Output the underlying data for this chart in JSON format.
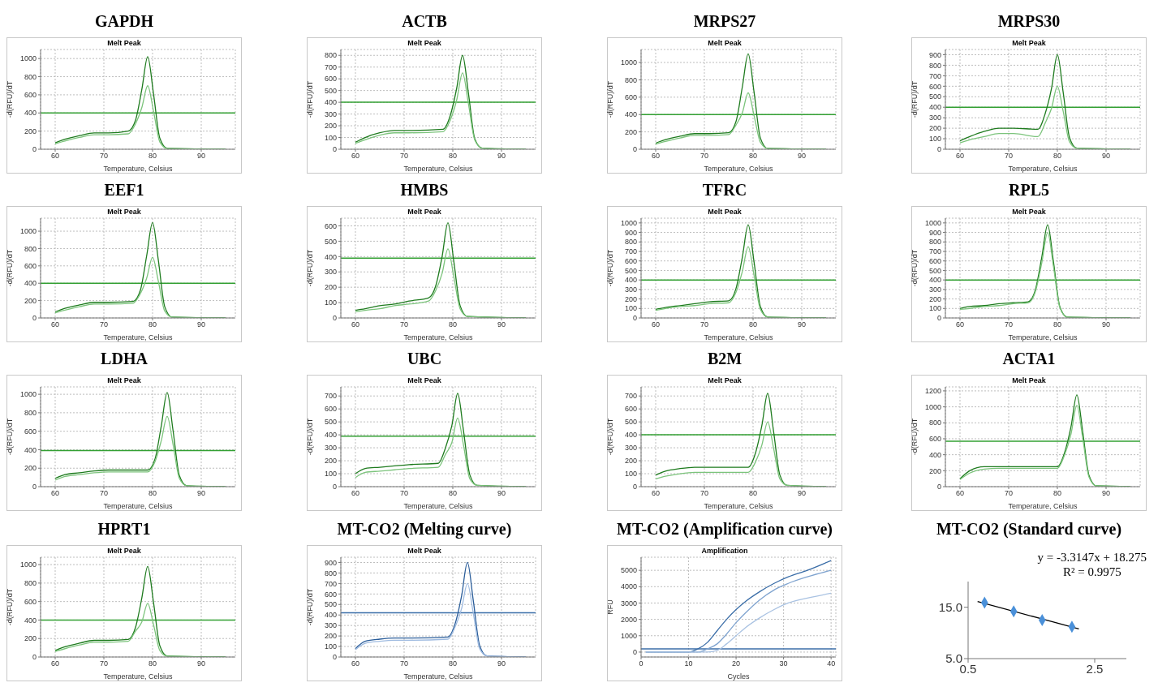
{
  "chart_data": [
    {
      "type": "line",
      "title": "GAPDH",
      "subtitle": "Melt Peak",
      "xlabel": "Temperature, Celsius",
      "ylabel": "-d(RFU)/dT",
      "xlim": [
        57,
        97
      ],
      "xticks": [
        60,
        70,
        80,
        90
      ],
      "ylim": [
        0,
        1100
      ],
      "yticks": [
        0,
        200,
        400,
        600,
        800,
        1000
      ],
      "grid": true,
      "x": [
        60,
        62,
        65,
        68,
        71,
        75,
        76.5,
        77.8,
        79,
        80.2,
        81.5,
        83,
        95
      ],
      "series": [
        {
          "color": "#1e7b1e",
          "values": [
            70,
            110,
            150,
            180,
            180,
            200,
            320,
            660,
            1020,
            610,
            120,
            10,
            0
          ]
        },
        {
          "color": "#7cc47c",
          "values": [
            60,
            90,
            130,
            160,
            160,
            170,
            280,
            460,
            700,
            420,
            80,
            10,
            0
          ]
        }
      ],
      "ref_lines": [
        {
          "axis": "y",
          "value": 400,
          "color": "#33a033"
        }
      ]
    },
    {
      "type": "line",
      "title": "ACTB",
      "subtitle": "Melt Peak",
      "xlabel": "Temperature, Celsius",
      "ylabel": "-d(RFU)/dT",
      "xlim": [
        57,
        97
      ],
      "xticks": [
        60,
        70,
        80,
        90
      ],
      "ylim": [
        0,
        850
      ],
      "yticks": [
        0,
        100,
        200,
        300,
        400,
        500,
        600,
        700,
        800
      ],
      "grid": true,
      "x": [
        60,
        62,
        65,
        68,
        71,
        78,
        79.5,
        80.8,
        82,
        83.2,
        84.5,
        86,
        95
      ],
      "series": [
        {
          "color": "#1e7b1e",
          "values": [
            60,
            100,
            140,
            160,
            160,
            170,
            290,
            520,
            800,
            480,
            90,
            10,
            0
          ]
        },
        {
          "color": "#7cc47c",
          "values": [
            50,
            80,
            120,
            140,
            140,
            150,
            250,
            420,
            650,
            390,
            80,
            10,
            0
          ]
        }
      ],
      "ref_lines": [
        {
          "axis": "y",
          "value": 400,
          "color": "#33a033"
        }
      ]
    },
    {
      "type": "line",
      "title": "MRPS27",
      "subtitle": "Melt Peak",
      "xlabel": "Temperature, Celsius",
      "ylabel": "-d(RFU)/dT",
      "xlim": [
        57,
        97
      ],
      "xticks": [
        60,
        70,
        80,
        90
      ],
      "ylim": [
        0,
        1150
      ],
      "yticks": [
        0,
        200,
        400,
        600,
        800,
        1000
      ],
      "grid": true,
      "x": [
        60,
        62,
        65,
        68,
        71,
        75,
        76.5,
        77.8,
        79,
        80.2,
        81.5,
        83,
        95
      ],
      "series": [
        {
          "color": "#1e7b1e",
          "values": [
            70,
            110,
            150,
            180,
            180,
            190,
            320,
            720,
            1100,
            660,
            130,
            10,
            0
          ]
        },
        {
          "color": "#7cc47c",
          "values": [
            60,
            90,
            130,
            160,
            160,
            170,
            280,
            420,
            650,
            390,
            80,
            10,
            0
          ]
        }
      ],
      "ref_lines": [
        {
          "axis": "y",
          "value": 400,
          "color": "#33a033"
        }
      ]
    },
    {
      "type": "line",
      "title": "MRPS30",
      "subtitle": "Melt Peak",
      "xlabel": "Temperature, Celsius",
      "ylabel": "-d(RFU)/dT",
      "xlim": [
        57,
        97
      ],
      "xticks": [
        60,
        70,
        80,
        90
      ],
      "ylim": [
        0,
        950
      ],
      "yticks": [
        0,
        100,
        200,
        300,
        400,
        500,
        600,
        700,
        800,
        900
      ],
      "grid": true,
      "x": [
        60,
        62,
        65,
        68,
        71,
        76,
        77.5,
        78.8,
        80,
        81.2,
        82.5,
        84,
        95
      ],
      "series": [
        {
          "color": "#1e7b1e",
          "values": [
            80,
            120,
            170,
            200,
            200,
            190,
            340,
            580,
            900,
            540,
            110,
            10,
            0
          ]
        },
        {
          "color": "#7cc47c",
          "values": [
            60,
            90,
            120,
            150,
            150,
            120,
            250,
            390,
            600,
            360,
            70,
            10,
            0
          ]
        }
      ],
      "ref_lines": [
        {
          "axis": "y",
          "value": 400,
          "color": "#33a033"
        }
      ]
    },
    {
      "type": "line",
      "title": "EEF1",
      "subtitle": "Melt Peak",
      "xlabel": "Temperature, Celsius",
      "ylabel": "-d(RFU)/dT",
      "xlim": [
        57,
        97
      ],
      "xticks": [
        60,
        70,
        80,
        90
      ],
      "ylim": [
        0,
        1150
      ],
      "yticks": [
        0,
        200,
        400,
        600,
        800,
        1000
      ],
      "grid": true,
      "x": [
        60,
        62,
        65,
        68,
        71,
        76,
        77.5,
        78.8,
        80,
        81.2,
        82.5,
        84,
        95
      ],
      "series": [
        {
          "color": "#1e7b1e",
          "values": [
            70,
            110,
            150,
            180,
            180,
            190,
            320,
            720,
            1100,
            660,
            130,
            10,
            0
          ]
        },
        {
          "color": "#7cc47c",
          "values": [
            60,
            90,
            130,
            160,
            160,
            170,
            280,
            460,
            700,
            420,
            80,
            10,
            0
          ]
        }
      ],
      "ref_lines": [
        {
          "axis": "y",
          "value": 400,
          "color": "#33a033"
        }
      ]
    },
    {
      "type": "line",
      "title": "HMBS",
      "subtitle": "Melt Peak",
      "xlabel": "Temperature, Celsius",
      "ylabel": "-d(RFU)/dT",
      "xlim": [
        57,
        97
      ],
      "xticks": [
        60,
        70,
        80,
        90
      ],
      "ylim": [
        0,
        650
      ],
      "yticks": [
        0,
        100,
        200,
        300,
        400,
        500,
        600
      ],
      "grid": true,
      "x": [
        60,
        62,
        65,
        68,
        71,
        75,
        76.5,
        77.8,
        79,
        80.2,
        81.5,
        83,
        95
      ],
      "series": [
        {
          "color": "#1e7b1e",
          "values": [
            50,
            60,
            80,
            90,
            110,
            130,
            210,
            400,
            620,
            370,
            80,
            10,
            0
          ]
        },
        {
          "color": "#7cc47c",
          "values": [
            40,
            50,
            60,
            80,
            90,
            110,
            180,
            290,
            450,
            270,
            60,
            10,
            0
          ]
        }
      ],
      "ref_lines": [
        {
          "axis": "y",
          "value": 390,
          "color": "#33a033"
        }
      ]
    },
    {
      "type": "line",
      "title": "TFRC",
      "subtitle": "Melt Peak",
      "xlabel": "Temperature, Celsius",
      "ylabel": "-d(RFU)/dT",
      "xlim": [
        57,
        97
      ],
      "xticks": [
        60,
        70,
        80,
        90
      ],
      "ylim": [
        0,
        1050
      ],
      "yticks": [
        0,
        100,
        200,
        300,
        400,
        500,
        600,
        700,
        800,
        900,
        1000
      ],
      "grid": true,
      "x": [
        60,
        62,
        65,
        68,
        71,
        75,
        76.5,
        77.8,
        79,
        80.2,
        81.5,
        83,
        95
      ],
      "series": [
        {
          "color": "#1e7b1e",
          "values": [
            90,
            110,
            130,
            150,
            170,
            180,
            310,
            640,
            980,
            590,
            120,
            10,
            0
          ]
        },
        {
          "color": "#7cc47c",
          "values": [
            80,
            100,
            120,
            130,
            150,
            160,
            270,
            490,
            750,
            450,
            90,
            10,
            0
          ]
        }
      ],
      "ref_lines": [
        {
          "axis": "y",
          "value": 400,
          "color": "#33a033"
        }
      ]
    },
    {
      "type": "line",
      "title": "RPL5",
      "subtitle": "Melt Peak",
      "xlabel": "Temperature, Celsius",
      "ylabel": "-d(RFU)/dT",
      "xlim": [
        57,
        97
      ],
      "xticks": [
        60,
        70,
        80,
        90
      ],
      "ylim": [
        0,
        1050
      ],
      "yticks": [
        0,
        100,
        200,
        300,
        400,
        500,
        600,
        700,
        800,
        900,
        1000
      ],
      "grid": true,
      "x": [
        60,
        62,
        65,
        68,
        71,
        74,
        75.5,
        76.8,
        78,
        79.2,
        80.5,
        82,
        95
      ],
      "series": [
        {
          "color": "#1e7b1e",
          "values": [
            100,
            120,
            130,
            150,
            160,
            170,
            300,
            640,
            980,
            590,
            120,
            10,
            0
          ]
        },
        {
          "color": "#7cc47c",
          "values": [
            90,
            100,
            120,
            130,
            150,
            160,
            280,
            580,
            900,
            540,
            110,
            10,
            0
          ]
        }
      ],
      "ref_lines": [
        {
          "axis": "y",
          "value": 400,
          "color": "#33a033"
        }
      ]
    },
    {
      "type": "line",
      "title": "LDHA",
      "subtitle": "Melt Peak",
      "xlabel": "Temperature, Celsius",
      "ylabel": "-d(RFU)/dT",
      "xlim": [
        57,
        97
      ],
      "xticks": [
        60,
        70,
        80,
        90
      ],
      "ylim": [
        0,
        1080
      ],
      "yticks": [
        0,
        200,
        400,
        600,
        800,
        1000
      ],
      "grid": true,
      "x": [
        60,
        62,
        65,
        68,
        71,
        79,
        80.5,
        81.8,
        83,
        84.2,
        85.5,
        87,
        95
      ],
      "series": [
        {
          "color": "#1e7b1e",
          "values": [
            90,
            130,
            150,
            170,
            180,
            180,
            300,
            660,
            1020,
            610,
            120,
            10,
            0
          ]
        },
        {
          "color": "#7cc47c",
          "values": [
            70,
            110,
            130,
            150,
            160,
            160,
            270,
            500,
            760,
            460,
            90,
            10,
            0
          ]
        }
      ],
      "ref_lines": [
        {
          "axis": "y",
          "value": 390,
          "color": "#33a033"
        }
      ]
    },
    {
      "type": "line",
      "title": "UBC",
      "subtitle": "Melt Peak",
      "xlabel": "Temperature, Celsius",
      "ylabel": "-d(RFU)/dT",
      "xlim": [
        57,
        97
      ],
      "xticks": [
        60,
        70,
        80,
        90
      ],
      "ylim": [
        0,
        770
      ],
      "yticks": [
        0,
        100,
        200,
        300,
        400,
        500,
        600,
        700
      ],
      "grid": true,
      "x": [
        60,
        62,
        65,
        68,
        71,
        77,
        78.5,
        79.8,
        81,
        82.2,
        83.5,
        85,
        95
      ],
      "series": [
        {
          "color": "#1e7b1e",
          "values": [
            100,
            140,
            150,
            160,
            170,
            180,
            300,
            470,
            720,
            430,
            90,
            10,
            0
          ]
        },
        {
          "color": "#7cc47c",
          "values": [
            70,
            110,
            120,
            130,
            140,
            150,
            250,
            340,
            530,
            320,
            60,
            10,
            0
          ]
        }
      ],
      "ref_lines": [
        {
          "axis": "y",
          "value": 390,
          "color": "#33a033"
        }
      ]
    },
    {
      "type": "line",
      "title": "B2M",
      "subtitle": "Melt Peak",
      "xlabel": "Temperature, Celsius",
      "ylabel": "-d(RFU)/dT",
      "xlim": [
        57,
        97
      ],
      "xticks": [
        60,
        70,
        80,
        90
      ],
      "ylim": [
        0,
        770
      ],
      "yticks": [
        0,
        100,
        200,
        300,
        400,
        500,
        600,
        700
      ],
      "grid": true,
      "x": [
        60,
        62,
        65,
        68,
        71,
        79,
        80.5,
        81.8,
        83,
        84.2,
        85.5,
        87,
        95
      ],
      "series": [
        {
          "color": "#1e7b1e",
          "values": [
            90,
            120,
            140,
            150,
            150,
            150,
            260,
            470,
            720,
            430,
            90,
            10,
            0
          ]
        },
        {
          "color": "#7cc47c",
          "values": [
            60,
            80,
            100,
            110,
            110,
            110,
            190,
            320,
            500,
            300,
            60,
            10,
            0
          ]
        }
      ],
      "ref_lines": [
        {
          "axis": "y",
          "value": 400,
          "color": "#33a033"
        }
      ]
    },
    {
      "type": "line",
      "title": "ACTA1",
      "subtitle": "Melt Peak",
      "xlabel": "Temperature, Celsius",
      "ylabel": "-d(RFU)/dT",
      "xlim": [
        57,
        97
      ],
      "xticks": [
        60,
        70,
        80,
        90
      ],
      "ylim": [
        0,
        1250
      ],
      "yticks": [
        0,
        200,
        400,
        600,
        800,
        1000,
        1200
      ],
      "grid": true,
      "x": [
        60,
        62,
        65,
        68,
        71,
        80,
        81.5,
        82.8,
        84,
        85.2,
        86.5,
        88,
        95
      ],
      "series": [
        {
          "color": "#1e7b1e",
          "values": [
            100,
            200,
            250,
            250,
            250,
            250,
            430,
            750,
            1150,
            690,
            140,
            10,
            0
          ]
        },
        {
          "color": "#7cc47c",
          "values": [
            90,
            170,
            220,
            230,
            230,
            230,
            400,
            660,
            1020,
            610,
            120,
            10,
            0
          ]
        }
      ],
      "ref_lines": [
        {
          "axis": "y",
          "value": 570,
          "color": "#33a033"
        }
      ]
    },
    {
      "type": "line",
      "title": "HPRT1",
      "subtitle": "Melt Peak",
      "xlabel": "Temperature, Celsius",
      "ylabel": "-d(RFU)/dT",
      "xlim": [
        57,
        97
      ],
      "xticks": [
        60,
        70,
        80,
        90
      ],
      "ylim": [
        0,
        1080
      ],
      "yticks": [
        0,
        200,
        400,
        600,
        800,
        1000
      ],
      "grid": true,
      "x": [
        60,
        62,
        65,
        68,
        71,
        75,
        76.5,
        77.8,
        79,
        80.2,
        81.5,
        83,
        95
      ],
      "series": [
        {
          "color": "#1e7b1e",
          "values": [
            70,
            110,
            150,
            180,
            180,
            190,
            320,
            640,
            980,
            590,
            120,
            10,
            0
          ]
        },
        {
          "color": "#7cc47c",
          "values": [
            60,
            90,
            130,
            160,
            160,
            170,
            280,
            380,
            580,
            350,
            70,
            10,
            0
          ]
        }
      ],
      "ref_lines": [
        {
          "axis": "y",
          "value": 400,
          "color": "#33a033"
        }
      ]
    },
    {
      "type": "line",
      "title": "MT-CO2 (Melting curve)",
      "subtitle": "Melt Peak",
      "xlabel": "Temperature, Celsius",
      "ylabel": "-d(RFU)/dT",
      "xlim": [
        57,
        97
      ],
      "xticks": [
        60,
        70,
        80,
        90
      ],
      "ylim": [
        0,
        950
      ],
      "yticks": [
        0,
        100,
        200,
        300,
        400,
        500,
        600,
        700,
        800,
        900
      ],
      "grid": true,
      "x": [
        60,
        62,
        65,
        68,
        71,
        79,
        80.5,
        81.8,
        83,
        84.2,
        85.5,
        87,
        95
      ],
      "series": [
        {
          "color": "#2a5d9a",
          "values": [
            80,
            150,
            170,
            180,
            180,
            190,
            320,
            580,
            900,
            540,
            110,
            10,
            0
          ]
        },
        {
          "color": "#9fbbe0",
          "values": [
            70,
            130,
            150,
            160,
            160,
            170,
            290,
            460,
            700,
            420,
            80,
            10,
            0
          ]
        }
      ],
      "ref_lines": [
        {
          "axis": "y",
          "value": 420,
          "color": "#3b6ea8"
        }
      ]
    },
    {
      "type": "line",
      "title": "MT-CO2 (Amplification curve)",
      "subtitle": "Amplification",
      "xlabel": "Cycles",
      "ylabel": "RFU",
      "xlim": [
        0,
        41
      ],
      "xticks": [
        0,
        10,
        20,
        30,
        40
      ],
      "ylim": [
        -300,
        5800
      ],
      "yticks": [
        0,
        1000,
        2000,
        3000,
        4000,
        5000
      ],
      "grid": true,
      "x": [
        1,
        5,
        10,
        12,
        14,
        16,
        18,
        20,
        22,
        25,
        28,
        31,
        35,
        40
      ],
      "series": [
        {
          "color": "#3b6ea8",
          "values": [
            0,
            0,
            0,
            200,
            600,
            1300,
            2000,
            2600,
            3100,
            3700,
            4200,
            4600,
            5000,
            5600
          ]
        },
        {
          "color": "#7fa3cf",
          "values": [
            0,
            0,
            0,
            0,
            200,
            500,
            1100,
            1800,
            2400,
            3200,
            3800,
            4200,
            4600,
            5000
          ]
        },
        {
          "color": "#a9c2e2",
          "values": [
            0,
            0,
            0,
            0,
            0,
            100,
            500,
            1000,
            1500,
            2100,
            2600,
            3000,
            3300,
            3600
          ]
        }
      ],
      "ref_lines": [
        {
          "axis": "y",
          "value": 200,
          "color": "#3b6ea8"
        }
      ]
    },
    {
      "type": "scatter",
      "title": "MT-CO2 (Standard curve)",
      "xlim": [
        0.5,
        3
      ],
      "xticks": [
        0.5,
        2.5
      ],
      "ylim": [
        5,
        20
      ],
      "yticks": [
        {
          "value": 5,
          "label": "5.0"
        },
        {
          "value": 15,
          "label": "15.0"
        }
      ],
      "marker": "diamond",
      "series": [
        {
          "x": [
            0.76,
            1.22,
            1.67,
            2.14
          ],
          "color": "#4a90d9",
          "values": [
            15.9,
            14.2,
            12.5,
            11.2
          ]
        },
        {
          "type": "line",
          "x": [
            0.65,
            2.25
          ],
          "color": "#000000",
          "values": [
            16.1,
            10.8
          ],
          "marker": "none"
        }
      ],
      "annotations": [
        "y = -3.3147x + 18.275",
        "R² = 0.9975"
      ]
    }
  ]
}
